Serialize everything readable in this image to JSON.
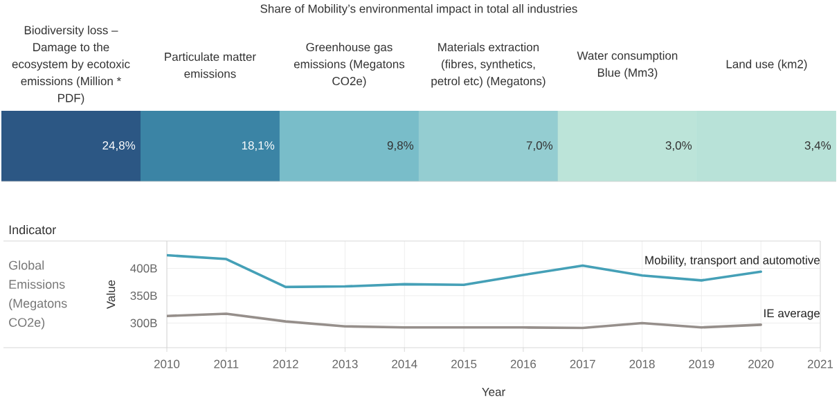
{
  "chart_data": [
    {
      "type": "heatmap",
      "title": "Share of Mobility’s environmental impact in total all industries",
      "categories": [
        "Biodiversity loss – Damage to the ecosystem by ecotoxic emissions (Million * PDF)",
        "Particulate matter emissions",
        "Greenhouse gas emissions (Megatons CO2e)",
        "Materials extraction (fibres, synthetics, petrol etc) (Megatons)",
        "Water consumption Blue (Mm3)",
        "Land use (km2)"
      ],
      "y_categories": [
        null
      ],
      "cells": [
        [
          24.8,
          18.1,
          9.8,
          7.0,
          3.0,
          3.4
        ]
      ],
      "cell_labels": [
        [
          "24,8%",
          "18,1%",
          "9,8%",
          "7,0%",
          "3,0%",
          "3,4%"
        ]
      ]
    },
    {
      "type": "line",
      "xlabel": "Year",
      "ylabel": "Value",
      "annotations": [
        "Indicator",
        "Global Emissions (Megatons CO2e)"
      ],
      "x": [
        2010,
        2011,
        2012,
        2013,
        2014,
        2015,
        2016,
        2017,
        2018,
        2019,
        2020
      ],
      "series": [
        {
          "name": "Mobility, transport and automotive",
          "color": "#45a0b7",
          "values": [
            424,
            417,
            366,
            367,
            371,
            370,
            388,
            405,
            387,
            378,
            394
          ]
        },
        {
          "name": "IE average",
          "color": "#968f8b",
          "values": [
            313,
            317,
            303,
            294,
            292,
            292,
            292,
            291,
            300,
            292,
            297
          ]
        }
      ],
      "xlim": [
        2010,
        2021
      ],
      "xticks": [
        2010,
        2011,
        2012,
        2013,
        2014,
        2015,
        2016,
        2017,
        2018,
        2019,
        2020,
        2021
      ],
      "ylim": [
        255,
        450
      ],
      "yticks": [
        {
          "value": 300,
          "label": "300B"
        },
        {
          "value": 350,
          "label": "350B"
        },
        {
          "value": 400,
          "label": "400B"
        }
      ],
      "grid": true,
      "marker": "none",
      "line_style": "solid"
    }
  ]
}
